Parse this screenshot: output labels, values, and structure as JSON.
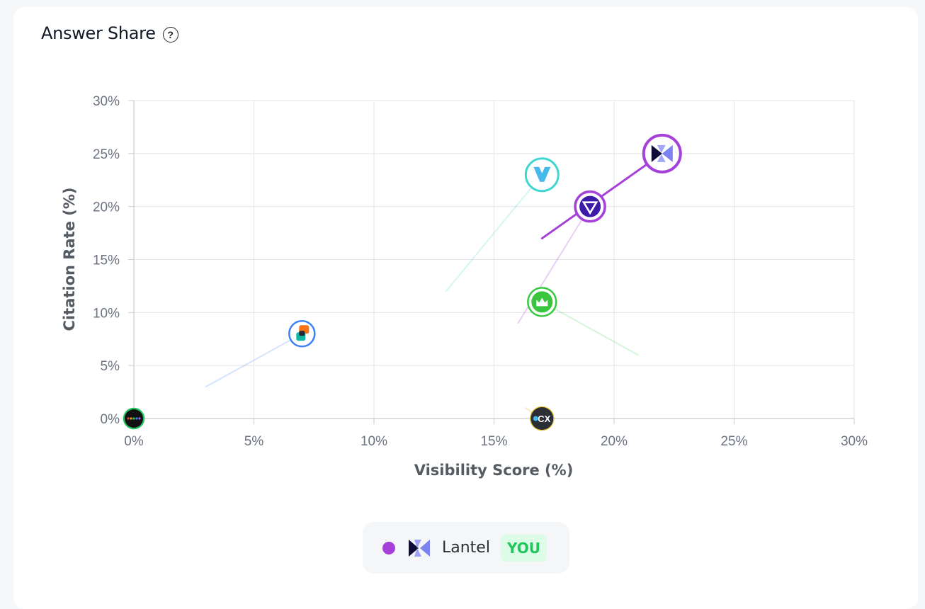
{
  "header": {
    "title": "Answer Share",
    "help_icon": "question-circle-icon"
  },
  "chart_data": {
    "type": "scatter",
    "xlabel": "Visibility Score (%)",
    "ylabel": "Citation Rate (%)",
    "xlim": [
      0,
      30
    ],
    "ylim": [
      0,
      30
    ],
    "xticks": [
      "0%",
      "5%",
      "10%",
      "15%",
      "20%",
      "25%",
      "30%"
    ],
    "yticks": [
      "0%",
      "5%",
      "10%",
      "15%",
      "20%",
      "25%",
      "30%"
    ],
    "grid": true,
    "series": [
      {
        "name": "Lantel",
        "you": true,
        "color": "#a541d8",
        "icon": "lantel-logo-icon",
        "x": 22,
        "y": 25,
        "trail_from": [
          17,
          17
        ]
      },
      {
        "color": "#a541d8",
        "icon": "inverted-triangle-logo-icon",
        "x": 19,
        "y": 20,
        "trail_from": [
          16,
          9
        ]
      },
      {
        "color": "#3fd6d1",
        "icon": "v-logo-icon",
        "x": 17,
        "y": 23,
        "trail_from": [
          13,
          12
        ]
      },
      {
        "color": "#37c940",
        "icon": "green-crown-logo-icon",
        "x": 17,
        "y": 11,
        "trail_from": [
          21,
          6
        ]
      },
      {
        "color": "#3b82f6",
        "icon": "orange-teal-blocks-logo-icon",
        "x": 7,
        "y": 8,
        "trail_from": [
          3,
          3
        ]
      },
      {
        "color": "#e6c53a",
        "icon": "cx-logo-icon",
        "x": 17,
        "y": 0,
        "trail_from": [
          16.3,
          1
        ]
      },
      {
        "color": "#22c55e",
        "icon": "dots-logo-icon",
        "x": 0,
        "y": 0,
        "trail_from": [
          0,
          0
        ]
      }
    ]
  },
  "legend": {
    "items": [
      {
        "label": "Lantel",
        "dot_color": "#a541d8",
        "badge": "YOU",
        "icon": "lantel-logo-icon"
      }
    ]
  }
}
